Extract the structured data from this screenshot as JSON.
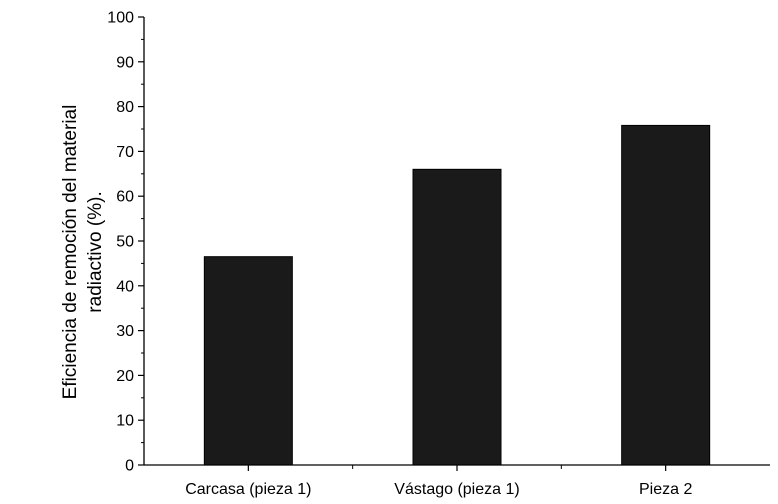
{
  "chart_data": {
    "type": "bar",
    "categories": [
      "Carcasa (pieza 1)",
      "Vástago (pieza 1)",
      "Pieza 2"
    ],
    "values": [
      46.5,
      66.0,
      75.8
    ],
    "title": "",
    "xlabel": "",
    "ylabel_lines": [
      "Eficiencia de remoción del material",
      "radiactivo (%)."
    ],
    "ylim": [
      0,
      100
    ],
    "yticks": [
      0,
      10,
      20,
      30,
      40,
      50,
      60,
      70,
      80,
      90,
      100
    ],
    "grid": false,
    "bar_color": "#1a1a1a"
  }
}
